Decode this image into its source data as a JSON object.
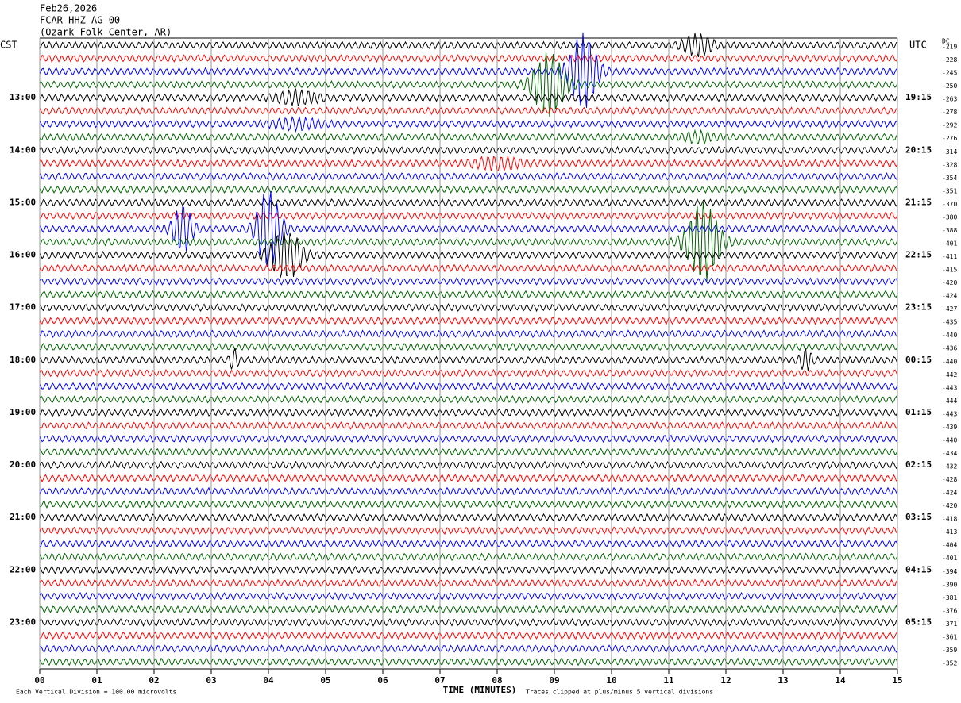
{
  "header": {
    "date": "Feb26,2026",
    "station": "FCAR HHZ AG 00",
    "location": "(Ozark Folk Center, AR)"
  },
  "chart_data": {
    "type": "helicorder",
    "left_axis_label": "CST",
    "right_axis_label": "UTC",
    "dc_label": "DC",
    "local_hours": [
      "13:00",
      "14:00",
      "15:00",
      "16:00",
      "17:00",
      "18:00",
      "19:00",
      "20:00",
      "21:00",
      "22:00",
      "23:00"
    ],
    "utc_hours": [
      "19:15",
      "20:15",
      "21:15",
      "22:15",
      "23:15",
      "00:15",
      "01:15",
      "02:15",
      "03:15",
      "04:15",
      "05:15"
    ],
    "trace_colors": [
      "#000000",
      "#ff0000",
      "#0000ff",
      "#006400"
    ],
    "dc_offsets": [
      -219,
      -228,
      -245,
      -250,
      -263,
      -278,
      -292,
      -276,
      -314,
      -328,
      -354,
      -351,
      -370,
      -380,
      -388,
      -401,
      -411,
      -415,
      -420,
      -424,
      -427,
      -435,
      -440,
      -436,
      -440,
      -442,
      -443,
      -444,
      -443,
      -439,
      -440,
      -434,
      -432,
      -428,
      -424,
      -420,
      -418,
      -413,
      -404,
      -401,
      -394,
      -390,
      -381,
      -376,
      -371,
      -361,
      -359,
      -352
    ],
    "xlim": [
      0,
      15
    ],
    "xticks": [
      {
        "value": 0,
        "label": "00"
      },
      {
        "value": 1,
        "label": "01"
      },
      {
        "value": 2,
        "label": "02"
      },
      {
        "value": 3,
        "label": "03"
      },
      {
        "value": 4,
        "label": "04"
      },
      {
        "value": 5,
        "label": "05"
      },
      {
        "value": 6,
        "label": "06"
      },
      {
        "value": 7,
        "label": "07"
      },
      {
        "value": 8,
        "label": "08"
      },
      {
        "value": 9,
        "label": "09"
      },
      {
        "value": 10,
        "label": "10"
      },
      {
        "value": 11,
        "label": "11"
      },
      {
        "value": 12,
        "label": "12"
      },
      {
        "value": 13,
        "label": "13"
      },
      {
        "value": 14,
        "label": "14"
      },
      {
        "value": 15,
        "label": 15
      }
    ],
    "x_label": "TIME (MINUTES)",
    "scale_note": "Each Vertical Division =  100.00 microvolts",
    "clip_note": "Traces clipped at plus/minus 5 vertical divisions"
  }
}
